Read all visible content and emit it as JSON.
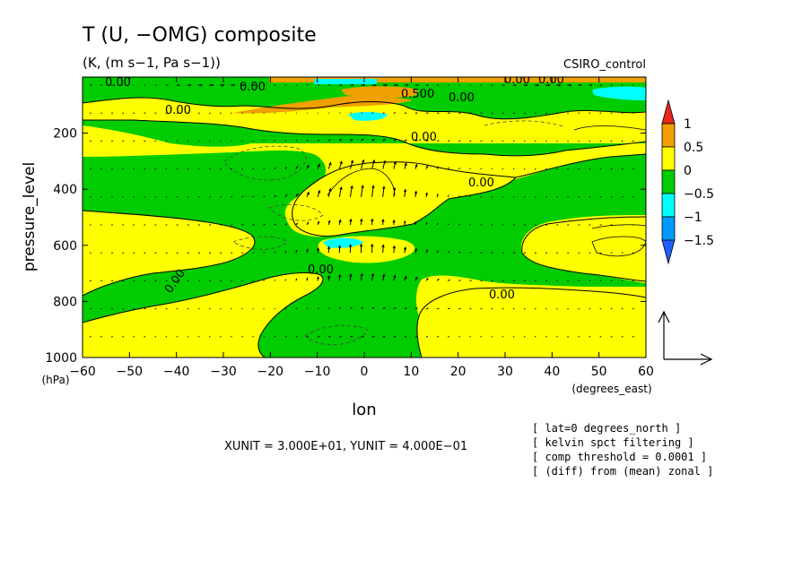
{
  "chart_data": {
    "type": "heatmap",
    "title": "T (U, −OMG) composite",
    "subtitle": "(K, (m s−1, Pa s−1))",
    "model": "CSIRO_control",
    "xlabel": "lon",
    "xunit": "(degrees_east)",
    "ylabel": "pressure_level",
    "yunit": "(hPa)",
    "xlim": [
      -60,
      60
    ],
    "ylim": [
      1000,
      0
    ],
    "x_ticks": [
      -60,
      -50,
      -40,
      -30,
      -20,
      -10,
      0,
      10,
      20,
      30,
      40,
      50,
      60
    ],
    "x_tick_labels": [
      "−60",
      "−50",
      "−40",
      "−30",
      "−20",
      "−10",
      "0",
      "10",
      "20",
      "30",
      "40",
      "50",
      "60"
    ],
    "y_ticks": [
      200,
      400,
      600,
      800,
      1000
    ],
    "y_tick_labels": [
      "200",
      "400",
      "600",
      "800",
      "1000"
    ],
    "colorbar": {
      "levels": [
        -1.5,
        -1,
        -0.5,
        0,
        0.5,
        1
      ],
      "labels": [
        "1",
        "0.5",
        "0",
        "−0.5",
        "−1",
        "−1.5"
      ],
      "colors": [
        "#e8261c",
        "#f0a000",
        "#ffff00",
        "#00cc00",
        "#00ffff",
        "#0099ff",
        "#1e5fff"
      ]
    },
    "contour_labels": [
      "0.00",
      "0.00",
      "0.00",
      "0.500",
      "0.00",
      "0.00",
      "0.00",
      "0.00",
      "0.00",
      "0.00",
      "0.00",
      "0.00"
    ],
    "vector_unit_text": "XUNIT = 3.000E+01, YUNIT = 4.000E−01",
    "notes": [
      "[ lat=0 degrees_north ]",
      "[ kelvin spct filtering ]",
      "[ comp threshold = 0.0001 ]",
      "[ (diff) from (mean) zonal ]"
    ],
    "grid": false
  },
  "colors": {
    "positive_fill": "#ffff00",
    "negative_fill": "#00cc00",
    "strong_positive": "#f0a000",
    "strong_negative": "#00ffff",
    "frame": "#000000"
  }
}
